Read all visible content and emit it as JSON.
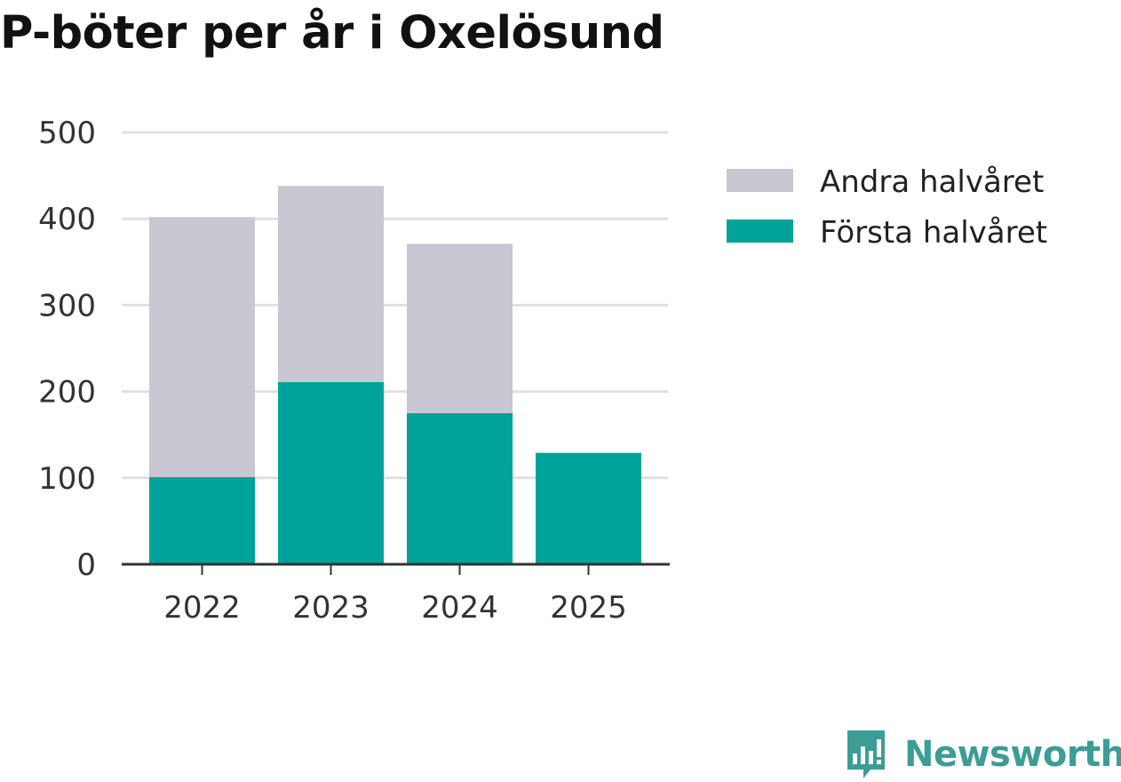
{
  "chart_data": {
    "type": "bar",
    "stacked": true,
    "title": "P-böter per år i Oxelösund",
    "categories": [
      "2022",
      "2023",
      "2024",
      "2025"
    ],
    "series": [
      {
        "name": "Första halvåret",
        "values": [
          101,
          211,
          175,
          129
        ],
        "color": "#00a39a"
      },
      {
        "name": "Andra halvåret",
        "values": [
          301,
          227,
          196,
          0
        ],
        "color": "#c8c7d2"
      }
    ],
    "yticks": [
      0,
      100,
      200,
      300,
      400,
      500
    ],
    "ylim": [
      0,
      500
    ],
    "grid": true,
    "legend_position": "right",
    "legend_order": [
      "Andra halvåret",
      "Första halvåret"
    ]
  },
  "branding": {
    "name": "Newsworthy",
    "icon": "newsworthy-logo-icon",
    "color": "#3d9c96"
  }
}
